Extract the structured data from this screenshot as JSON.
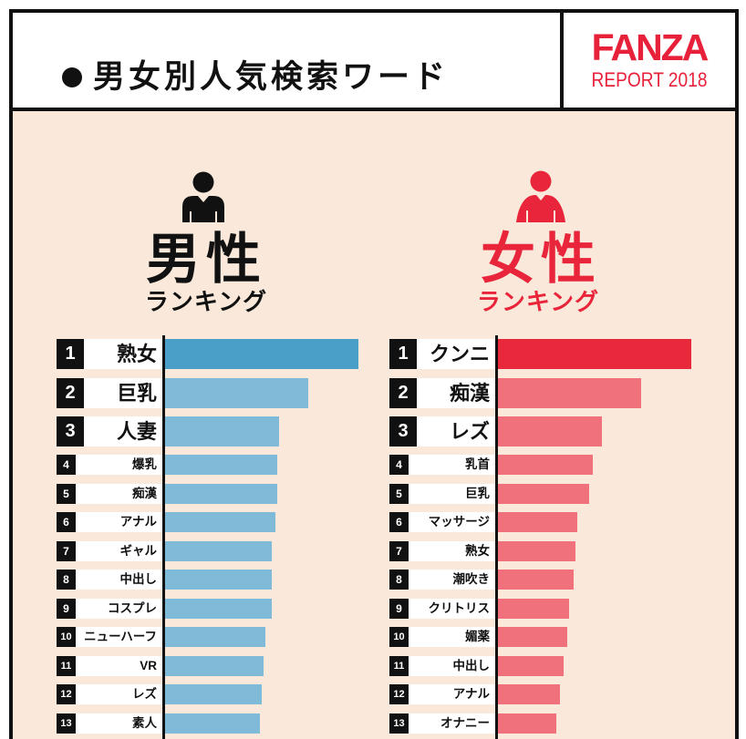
{
  "header": {
    "title": "男女別人気検索ワード",
    "bullet_icon": "bullet-icon",
    "logo": {
      "brand": "FANZA",
      "subtitle": "REPORT 2018",
      "color": "#e8213a"
    }
  },
  "colors": {
    "frame": "#111111",
    "background": "#fae9da",
    "header_background": "#ffffff"
  },
  "icons": {
    "male": "male-person-icon",
    "female": "female-person-icon"
  },
  "chart_data": [
    {
      "type": "bar",
      "orientation": "horizontal",
      "title": "男性",
      "subtitle": "ランキング",
      "title_color": "#111111",
      "ranks": [
        1,
        2,
        3,
        4,
        5,
        6,
        7,
        8,
        9,
        10,
        11,
        12,
        13
      ],
      "categories": [
        "熟女",
        "巨乳",
        "人妻",
        "爆乳",
        "痴漢",
        "アナル",
        "ギャル",
        "中出し",
        "コスプレ",
        "ニューハーフ",
        "VR",
        "レズ",
        "素人"
      ],
      "values": [
        100,
        74,
        59,
        58,
        58,
        57,
        55,
        55,
        55,
        52,
        51,
        50,
        49
      ],
      "highlight_color": "#4a9fc8",
      "color": "#7fbbd8"
    },
    {
      "type": "bar",
      "orientation": "horizontal",
      "title": "女性",
      "subtitle": "ランキング",
      "title_color": "#e8253a",
      "ranks": [
        1,
        2,
        3,
        4,
        5,
        6,
        7,
        8,
        9,
        10,
        11,
        12,
        13
      ],
      "categories": [
        "クンニ",
        "痴漢",
        "レズ",
        "乳首",
        "巨乳",
        "マッサージ",
        "熟女",
        "潮吹き",
        "クリトリス",
        "媚薬",
        "中出し",
        "アナル",
        "オナニー"
      ],
      "values": [
        100,
        74,
        54,
        49,
        47,
        41,
        40,
        39,
        37,
        36,
        34,
        32,
        30
      ],
      "highlight_color": "#e8293b",
      "color": "#f0707b"
    }
  ]
}
